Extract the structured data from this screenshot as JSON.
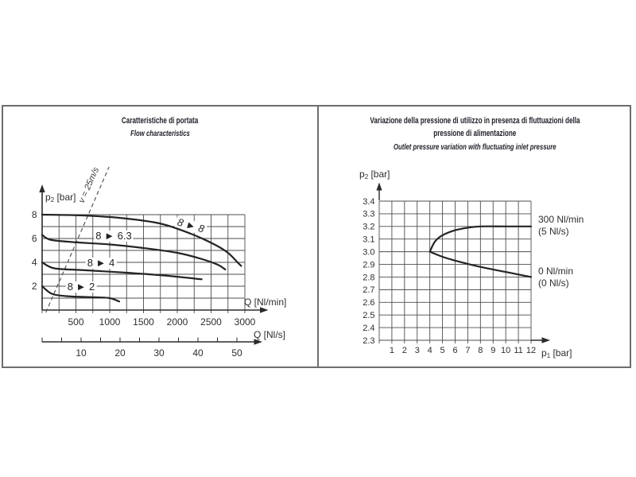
{
  "page": {
    "background": "#ffffff",
    "frame_border_color": "#6d6d6d",
    "grid_color": "#4c4c4c",
    "curve_color": "#242424",
    "text_color": "#2e2e33"
  },
  "panels": {
    "left": {
      "title": "Caratteristiche di portata",
      "subtitle": "Flow characteristics"
    },
    "right": {
      "title_line1": "Variazione della pressione di utilizzo in presenza di fluttuazioni della",
      "title_line2": "pressione di alimentazione",
      "subtitle": "Outlet pressure variation with fluctuating inlet pressure"
    }
  },
  "labels": {
    "p": "p",
    "sub2": "2",
    "sub1": "1",
    "bar_unit": " [bar]"
  },
  "chart_data": [
    {
      "id": "flow-characteristics",
      "type": "line",
      "title": "Caratteristiche di portata",
      "subtitle": "Flow characteristics",
      "xlabel": "Q [Nl/min]",
      "x2label": "Q [Nl/s]",
      "ylabel": "p2 [bar]",
      "xlim": [
        0,
        3000
      ],
      "ylim": [
        0,
        8
      ],
      "x2lim": [
        0,
        50
      ],
      "grid": "on",
      "grid_step_x": 250,
      "grid_step_y": 1,
      "x_ticks": [
        "500",
        "1000",
        "1500",
        "2000",
        "2500",
        "3000"
      ],
      "y_ticks": [
        "8",
        "6",
        "4",
        "2"
      ],
      "x2_ticks": [
        "10",
        "20",
        "30",
        "40",
        "50"
      ],
      "annotation": {
        "text": "v = 25m/s",
        "line_points": [
          [
            55,
            -0.2
          ],
          [
            990,
            12
          ]
        ]
      },
      "series": [
        {
          "label": "8 ► 8",
          "points": [
            [
              0,
              8
            ],
            [
              600,
              7.93
            ],
            [
              1200,
              7.7
            ],
            [
              1750,
              7.25
            ],
            [
              2200,
              6.4
            ],
            [
              2550,
              5.5
            ],
            [
              2750,
              4.8
            ],
            [
              2900,
              3.95
            ],
            [
              2945,
              3.7
            ]
          ]
        },
        {
          "label": "8 ► 6.3",
          "points": [
            [
              0,
              6.3
            ],
            [
              120,
              5.9
            ],
            [
              450,
              5.7
            ],
            [
              1000,
              5.5
            ],
            [
              1500,
              5.2
            ],
            [
              2000,
              4.8
            ],
            [
              2350,
              4.3
            ],
            [
              2600,
              3.8
            ],
            [
              2710,
              3.4
            ]
          ]
        },
        {
          "label": "8 ► 4",
          "points": [
            [
              0,
              4
            ],
            [
              180,
              3.5
            ],
            [
              600,
              3.35
            ],
            [
              1200,
              3.15
            ],
            [
              1800,
              2.9
            ],
            [
              2360,
              2.58
            ]
          ]
        },
        {
          "label": "8 ► 2",
          "points": [
            [
              0,
              2
            ],
            [
              150,
              1.35
            ],
            [
              400,
              1.15
            ],
            [
              800,
              1.07
            ],
            [
              1000,
              1.0
            ],
            [
              1140,
              0.72
            ]
          ]
        }
      ]
    },
    {
      "id": "outlet-pressure-variation",
      "type": "line",
      "title": "Variazione della pressione di utilizzo in presenza di fluttuazioni della pressione di alimentazione",
      "subtitle": "Outlet pressure variation with fluctuating inlet pressure",
      "xlabel": "p1 [bar]",
      "ylabel": "p2 [bar]",
      "xlim": [
        0,
        12
      ],
      "ylim": [
        2.3,
        3.4
      ],
      "grid": "on",
      "grid_step_x": 1,
      "grid_step_y": 0.1,
      "x_ticks": [
        "1",
        "2",
        "3",
        "4",
        "5",
        "6",
        "7",
        "8",
        "9",
        "10",
        "11",
        "12"
      ],
      "y_ticks": [
        "3.4",
        "3.3",
        "3.2",
        "3.1",
        "3.0",
        "2.9",
        "2.8",
        "2.7",
        "2.6",
        "2.5",
        "2.4",
        "2.3"
      ],
      "series": [
        {
          "label": "300 Nl/min (5 Nl/s)",
          "legend1": "300 Nl/min",
          "legend2": "(5 Nl/s)",
          "points": [
            [
              4,
              3.0
            ],
            [
              4.4,
              3.08
            ],
            [
              5,
              3.13
            ],
            [
              6,
              3.17
            ],
            [
              7,
              3.19
            ],
            [
              8,
              3.2
            ],
            [
              10,
              3.2
            ],
            [
              12,
              3.2
            ]
          ]
        },
        {
          "label": "0 Nl/min (0 Nl/s)",
          "legend1": "0 Nl/min",
          "legend2": "(0 Nl/s)",
          "points": [
            [
              4,
              3.0
            ],
            [
              5,
              2.96
            ],
            [
              6,
              2.93
            ],
            [
              8,
              2.88
            ],
            [
              10,
              2.84
            ],
            [
              12,
              2.8
            ]
          ]
        }
      ]
    }
  ]
}
